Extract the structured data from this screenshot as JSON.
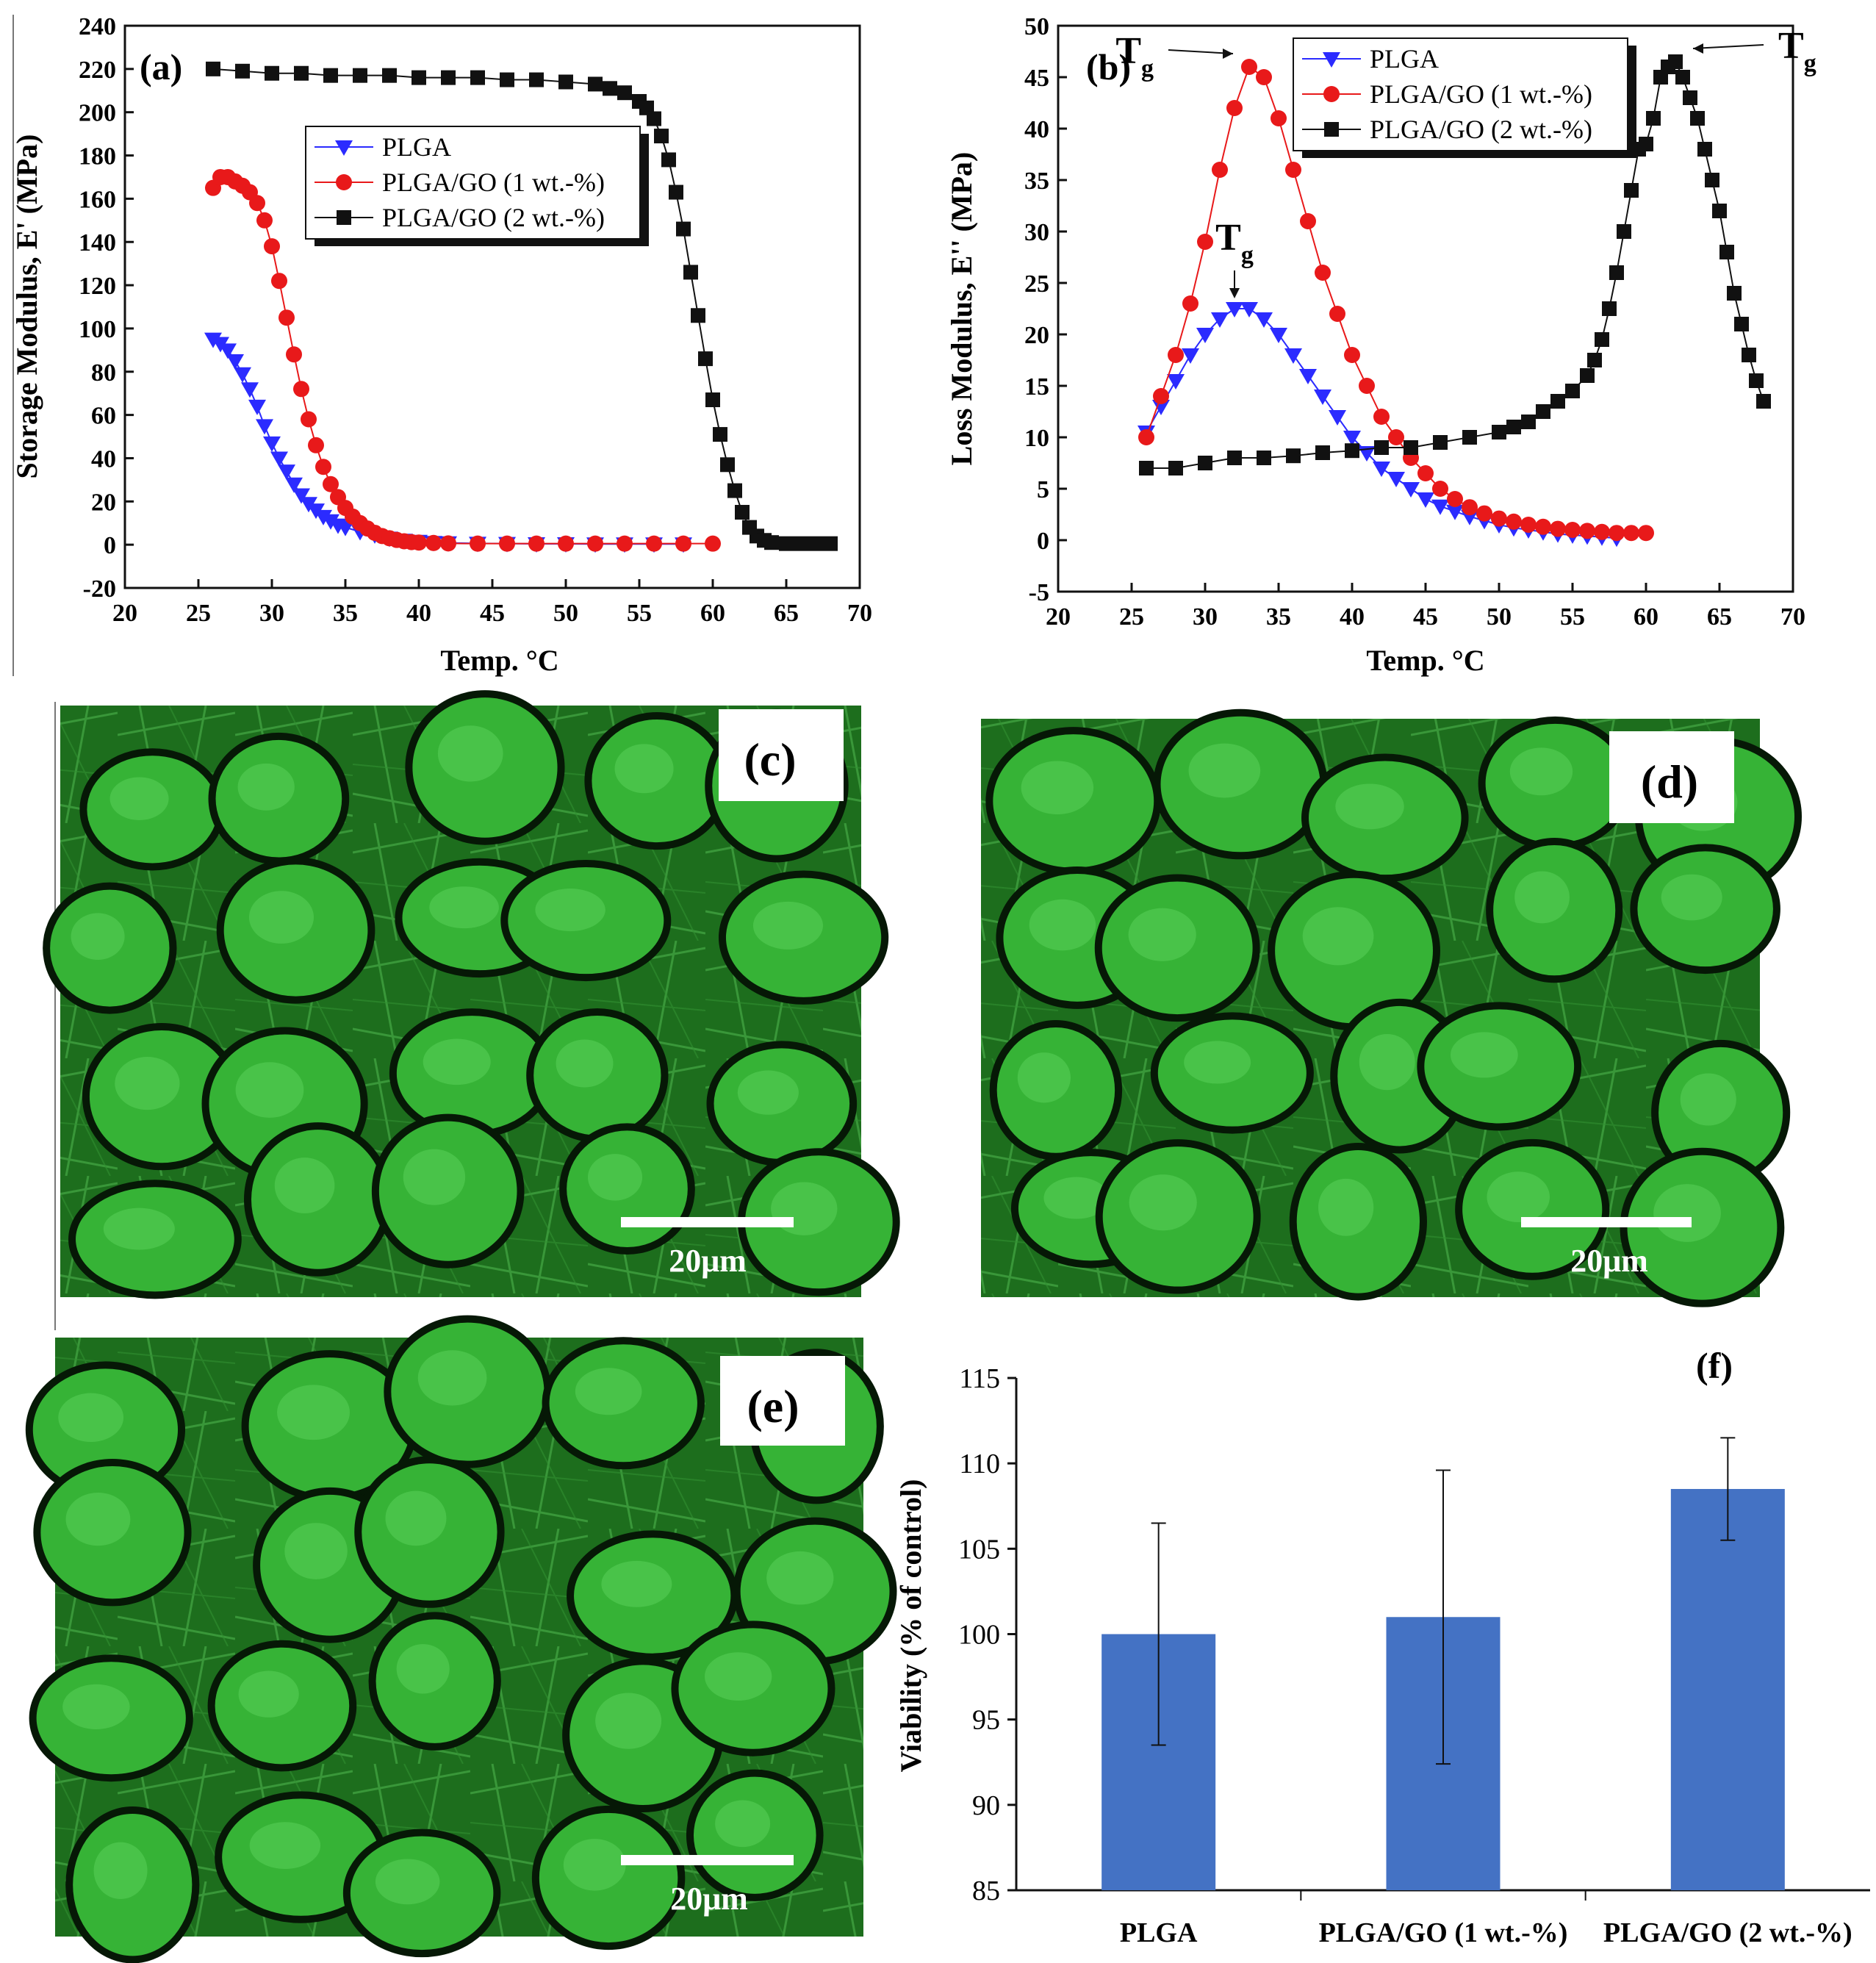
{
  "chart_data": [
    {
      "panel": "(a)",
      "type": "scatter",
      "xlabel": "Temp. °C",
      "ylabel": "Storage Modulus, E' (MPa)",
      "xlim": [
        20,
        70
      ],
      "ylim": [
        -20,
        240
      ],
      "xticks": [
        20,
        25,
        30,
        35,
        40,
        45,
        50,
        55,
        60,
        65,
        70
      ],
      "yticks": [
        -20,
        0,
        20,
        40,
        60,
        80,
        100,
        120,
        140,
        160,
        180,
        200,
        220,
        240
      ],
      "legend": "upper-middle",
      "series": [
        {
          "name": "PLGA",
          "color": "#2b2bff",
          "marker": "triangle-down",
          "x": [
            26,
            26.5,
            27,
            27.5,
            28,
            28.5,
            29,
            29.5,
            30,
            30.5,
            31,
            31.5,
            32,
            32.5,
            33,
            33.5,
            34,
            34.5,
            35,
            36,
            37,
            38,
            39,
            40,
            41,
            42,
            44,
            46,
            48,
            50,
            52,
            54,
            56,
            58
          ],
          "y": [
            95,
            93,
            90,
            85,
            79,
            72,
            64,
            55,
            47,
            40,
            34,
            28,
            23,
            19,
            16,
            13,
            11,
            9,
            8,
            6,
            4.5,
            3,
            2,
            1.5,
            1,
            0.8,
            0.6,
            0.5,
            0.4,
            0.4,
            0.3,
            0.3,
            0.3,
            0.3
          ]
        },
        {
          "name": "PLGA/GO (1 wt.-%)",
          "color": "#e8191a",
          "marker": "circle",
          "x": [
            26,
            26.5,
            27,
            27.5,
            28,
            28.5,
            29,
            29.5,
            30,
            30.5,
            31,
            31.5,
            32,
            32.5,
            33,
            33.5,
            34,
            34.5,
            35,
            35.5,
            36,
            36.5,
            37,
            37.5,
            38,
            38.5,
            39,
            39.5,
            40,
            41,
            42,
            44,
            46,
            48,
            50,
            52,
            54,
            56,
            58,
            60
          ],
          "y": [
            165,
            170,
            170,
            168,
            166,
            163,
            158,
            150,
            138,
            122,
            105,
            88,
            72,
            58,
            46,
            36,
            28,
            22,
            17,
            13,
            10,
            7.5,
            5.5,
            4,
            3,
            2.2,
            1.6,
            1.2,
            1,
            0.8,
            0.6,
            0.5,
            0.5,
            0.5,
            0.5,
            0.5,
            0.5,
            0.5,
            0.5,
            0.5
          ]
        },
        {
          "name": "PLGA/GO (2 wt.-%)",
          "color": "#111111",
          "marker": "square",
          "x": [
            26,
            28,
            30,
            32,
            34,
            36,
            38,
            40,
            42,
            44,
            46,
            48,
            50,
            52,
            53,
            54,
            55,
            55.5,
            56,
            56.5,
            57,
            57.5,
            58,
            58.5,
            59,
            59.5,
            60,
            60.5,
            61,
            61.5,
            62,
            62.5,
            63,
            63.5,
            64,
            65,
            66,
            67,
            68
          ],
          "y": [
            220,
            219,
            218,
            218,
            217,
            217,
            217,
            216,
            216,
            216,
            215,
            215,
            214,
            213,
            211,
            209,
            205,
            202,
            197,
            189,
            178,
            163,
            146,
            126,
            106,
            86,
            67,
            51,
            37,
            25,
            15,
            8,
            4,
            2,
            1,
            0.5,
            0.5,
            0.5,
            0.5
          ]
        }
      ]
    },
    {
      "panel": "(b)",
      "type": "scatter",
      "xlabel": "Temp. °C",
      "ylabel": "Loss Modulus, E'' (MPa)",
      "xlim": [
        20,
        70
      ],
      "ylim": [
        -5,
        50
      ],
      "xticks": [
        20,
        25,
        30,
        35,
        40,
        45,
        50,
        55,
        60,
        65,
        70
      ],
      "yticks": [
        -5,
        0,
        5,
        10,
        15,
        20,
        25,
        30,
        35,
        40,
        45,
        50
      ],
      "legend": "top-center",
      "annotations": [
        {
          "label": "T",
          "sub": "g",
          "series": "PLGA/GO (1 wt.-%)",
          "x": 33,
          "y": 46
        },
        {
          "label": "T",
          "sub": "g",
          "series": "PLGA",
          "x": 32,
          "y": 22.5
        },
        {
          "label": "T",
          "sub": "g",
          "series": "PLGA/GO (2 wt.-%)",
          "x": 62,
          "y": 46.5
        }
      ],
      "series": [
        {
          "name": "PLGA",
          "color": "#2b2bff",
          "marker": "triangle-down",
          "x": [
            26,
            27,
            28,
            29,
            30,
            31,
            32,
            33,
            34,
            35,
            36,
            37,
            38,
            39,
            40,
            41,
            42,
            43,
            44,
            45,
            46,
            47,
            48,
            49,
            50,
            51,
            52,
            53,
            54,
            55,
            56,
            57,
            58
          ],
          "y": [
            10.5,
            13,
            15.5,
            18,
            20,
            21.5,
            22.5,
            22.5,
            21.5,
            20,
            18,
            16,
            14,
            12,
            10,
            8.5,
            7,
            6,
            5,
            4,
            3.3,
            2.8,
            2.3,
            1.9,
            1.5,
            1.2,
            1,
            0.8,
            0.6,
            0.5,
            0.4,
            0.3,
            0.2
          ]
        },
        {
          "name": "PLGA/GO (1 wt.-%)",
          "color": "#e8191a",
          "marker": "circle",
          "x": [
            26,
            27,
            28,
            29,
            30,
            31,
            32,
            33,
            34,
            35,
            36,
            37,
            38,
            39,
            40,
            41,
            42,
            43,
            44,
            45,
            46,
            47,
            48,
            49,
            50,
            51,
            52,
            53,
            54,
            55,
            56,
            57,
            58,
            59,
            60
          ],
          "y": [
            10,
            14,
            18,
            23,
            29,
            36,
            42,
            46,
            45,
            41,
            36,
            31,
            26,
            22,
            18,
            15,
            12,
            10,
            8,
            6.5,
            5,
            4,
            3.2,
            2.6,
            2.1,
            1.8,
            1.5,
            1.3,
            1.1,
            1,
            0.9,
            0.8,
            0.7,
            0.7,
            0.7
          ]
        },
        {
          "name": "PLGA/GO (2 wt.-%)",
          "color": "#111111",
          "marker": "square",
          "x": [
            26,
            28,
            30,
            32,
            34,
            36,
            38,
            40,
            42,
            44,
            46,
            48,
            50,
            51,
            52,
            53,
            54,
            55,
            56,
            56.5,
            57,
            57.5,
            58,
            58.5,
            59,
            59.5,
            60,
            60.5,
            61,
            61.5,
            62,
            62.5,
            63,
            63.5,
            64,
            64.5,
            65,
            65.5,
            66,
            66.5,
            67,
            67.5,
            68
          ],
          "y": [
            7,
            7,
            7.5,
            8,
            8,
            8.2,
            8.5,
            8.7,
            9,
            9,
            9.5,
            10,
            10.5,
            11,
            11.5,
            12.5,
            13.5,
            14.5,
            16,
            17.5,
            19.5,
            22.5,
            26,
            30,
            34,
            38,
            38.5,
            41,
            45,
            46,
            46.5,
            45,
            43,
            41,
            38,
            35,
            32,
            28,
            24,
            21,
            18,
            15.5,
            13.5
          ]
        }
      ]
    },
    {
      "panel": "(f)",
      "type": "bar",
      "xlabel": "",
      "ylabel": "Viability (% of control)",
      "ylim": [
        85,
        115
      ],
      "yticks": [
        85,
        90,
        95,
        100,
        105,
        110,
        115
      ],
      "bar_color": "#4472c4",
      "categories": [
        "PLGA",
        "PLGA/GO (1 wt.-%)",
        "PLGA/GO (2 wt.-%)"
      ],
      "values": [
        100,
        101,
        108.5
      ],
      "errors": [
        6.5,
        8.6,
        3
      ]
    }
  ],
  "micrographs": [
    {
      "tag": "(c)",
      "scale_label": "20μm"
    },
    {
      "tag": "(d)",
      "scale_label": "20μm"
    },
    {
      "tag": "(e)",
      "scale_label": "20μm"
    }
  ],
  "annotation_text": {
    "tg": "T",
    "tg_sub": "g"
  },
  "colors": {
    "plga": "#2b2bff",
    "go1": "#e8191a",
    "go2": "#111111",
    "bar": "#4472c4",
    "micro_bg": "#0b3a0b",
    "micro_cell": "#3fcf3f"
  }
}
